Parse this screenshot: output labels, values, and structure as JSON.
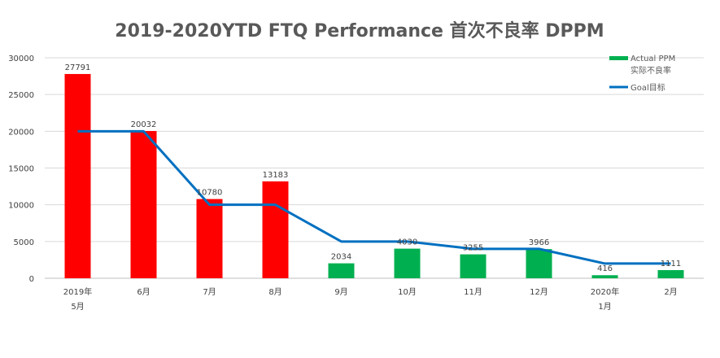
{
  "chart_data": {
    "type": "bar",
    "title": "2019-2020YTD FTQ Performance 首次不良率 DPPM",
    "categories": [
      [
        "2019年",
        "5月"
      ],
      [
        "6月"
      ],
      [
        "7月"
      ],
      [
        "8月"
      ],
      [
        "9月"
      ],
      [
        "10月"
      ],
      [
        "11月"
      ],
      [
        "12月"
      ],
      [
        "2020年",
        "1月"
      ],
      [
        "2月"
      ]
    ],
    "series": [
      {
        "name": "Actual PPM 实际不良率",
        "legend_lines": [
          "Actual PPM",
          "实际不良率"
        ],
        "kind": "bar",
        "values": [
          27791,
          20032,
          10780,
          13183,
          2034,
          4030,
          3255,
          3966,
          416,
          1111
        ],
        "colors": [
          "#FF0000",
          "#FF0000",
          "#FF0000",
          "#FF0000",
          "#00B050",
          "#00B050",
          "#00B050",
          "#00B050",
          "#00B050",
          "#00B050"
        ],
        "legend_color": "#00B050"
      },
      {
        "name": "Goal目标",
        "legend_lines": [
          "Goal目标"
        ],
        "kind": "line",
        "color": "#0070C0",
        "values": [
          20000,
          20000,
          10000,
          10000,
          5000,
          5000,
          4000,
          4000,
          2000,
          2000
        ]
      }
    ],
    "yticks": [
      0,
      5000,
      10000,
      15000,
      20000,
      25000,
      30000
    ],
    "ylim": [
      0,
      30000
    ],
    "xlabel": "",
    "ylabel": "",
    "grid": true,
    "legend_position": "top-right"
  }
}
